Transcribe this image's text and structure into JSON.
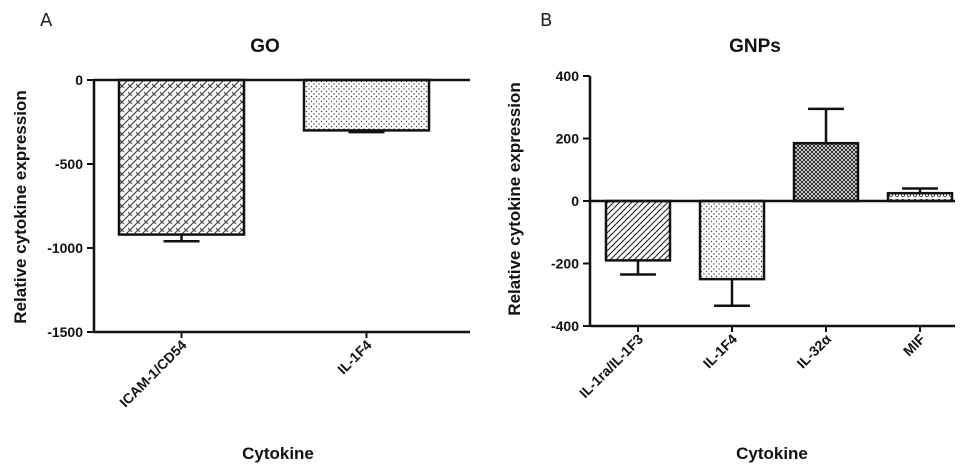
{
  "chart_data": [
    {
      "type": "bar",
      "panel": "A",
      "title": "GO",
      "xlabel": "Cytokine",
      "ylabel": "Relative cytokine expression",
      "categories": [
        "ICAM-1/CD54",
        "IL-1F4"
      ],
      "values": [
        -920,
        -300
      ],
      "errors": [
        40,
        10
      ],
      "ylim": [
        -1500,
        0
      ],
      "yticks": [
        0,
        -500,
        -1000,
        -1500
      ],
      "ytick_labels": [
        "0",
        "-500",
        "-1000",
        "-1500"
      ],
      "patterns": [
        "brick",
        "dots"
      ],
      "grid": false
    },
    {
      "type": "bar",
      "panel": "B",
      "title": "GNPs",
      "xlabel": "Cytokine",
      "ylabel": "Relative cytokine expression",
      "categories": [
        "IL-1ra/IL-1F3",
        "IL-1F4",
        "IL-32α",
        "MIF"
      ],
      "values": [
        -190,
        -250,
        185,
        25
      ],
      "errors": [
        45,
        85,
        110,
        15
      ],
      "ylim": [
        -400,
        400
      ],
      "yticks": [
        400,
        200,
        0,
        -200,
        -400
      ],
      "ytick_labels": [
        "400",
        "200",
        "0",
        "-200",
        "-400"
      ],
      "patterns": [
        "diagonal",
        "dots",
        "crosshatch",
        "circles"
      ],
      "grid": false
    }
  ]
}
